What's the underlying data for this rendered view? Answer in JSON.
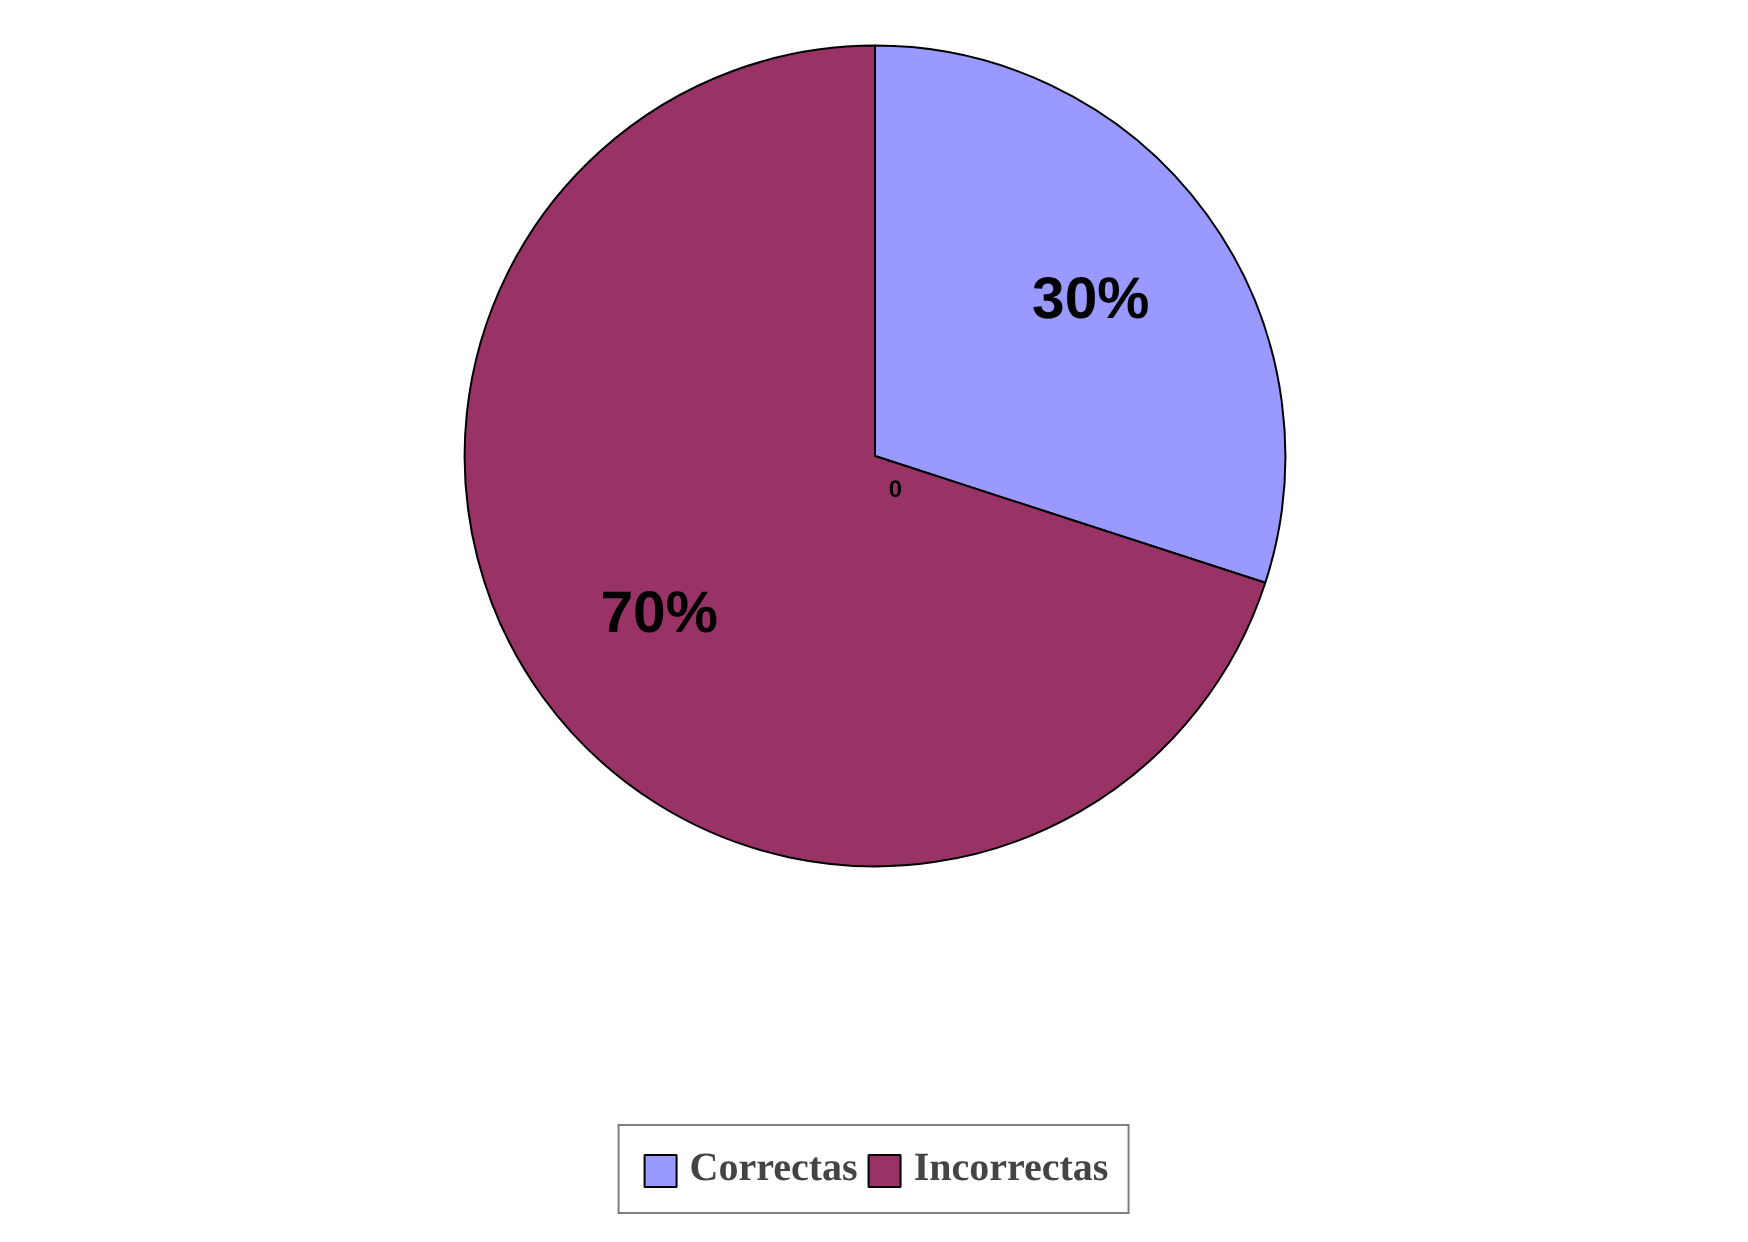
{
  "chart_data": {
    "type": "pie",
    "categories": [
      "Correctas",
      "Incorrectas"
    ],
    "values": [
      30,
      70
    ],
    "colors": [
      "#9999ff",
      "#993366"
    ],
    "value_labels": [
      "30%",
      "70%"
    ],
    "legend": "bottom",
    "annotations": [
      "0"
    ]
  }
}
